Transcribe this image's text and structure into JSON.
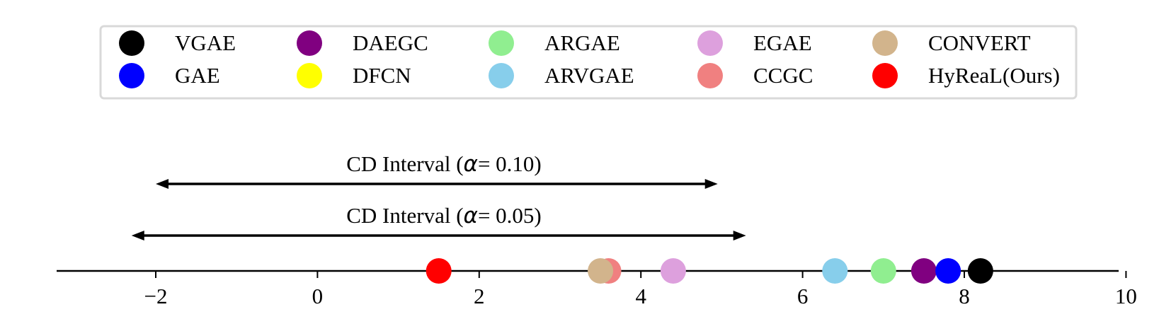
{
  "chart_data": {
    "type": "scatter",
    "title": "",
    "xlabel": "",
    "ylabel": "",
    "xlim": [
      -3.2,
      10
    ],
    "ticks": [
      -2,
      0,
      2,
      4,
      6,
      8,
      10
    ],
    "tick_labels": [
      "−2",
      "0",
      "2",
      "4",
      "6",
      "8",
      "10"
    ],
    "legend_position": "top-center",
    "legend": [
      {
        "name": "VGAE",
        "color": "#000000"
      },
      {
        "name": "GAE",
        "color": "#0000ff"
      },
      {
        "name": "DAEGC",
        "color": "#800080"
      },
      {
        "name": "DFCN",
        "color": "#ffff00"
      },
      {
        "name": "ARGAE",
        "color": "#90ee90"
      },
      {
        "name": "ARVGAE",
        "color": "#87ceeb"
      },
      {
        "name": "EGAE",
        "color": "#dda0dd"
      },
      {
        "name": "CCGC",
        "color": "#f08080"
      },
      {
        "name": "CONVERT",
        "color": "#d2b48c"
      },
      {
        "name": "HyReaL(Ours)",
        "color": "#ff0000"
      }
    ],
    "points": [
      {
        "name": "HyReaL(Ours)",
        "x": 1.5,
        "color": "#ff0000"
      },
      {
        "name": "CCGC",
        "x": 3.6,
        "color": "#f08080"
      },
      {
        "name": "CONVERT",
        "x": 3.5,
        "color": "#d2b48c"
      },
      {
        "name": "EGAE",
        "x": 4.4,
        "color": "#dda0dd"
      },
      {
        "name": "ARVGAE",
        "x": 6.4,
        "color": "#87ceeb"
      },
      {
        "name": "ARGAE",
        "x": 7.0,
        "color": "#90ee90"
      },
      {
        "name": "DAEGC",
        "x": 7.5,
        "color": "#800080"
      },
      {
        "name": "GAE",
        "x": 7.8,
        "color": "#0000ff"
      },
      {
        "name": "VGAE",
        "x": 8.2,
        "color": "#000000"
      }
    ],
    "intervals": [
      {
        "label_prefix": "CD Interval (",
        "alpha_symbol": "α",
        "label_suffix": "= 0.10)",
        "from": -2.0,
        "to": 4.95
      },
      {
        "label_prefix": "CD Interval (",
        "alpha_symbol": "α",
        "label_suffix": "= 0.05)",
        "from": -2.3,
        "to": 5.3
      }
    ]
  }
}
